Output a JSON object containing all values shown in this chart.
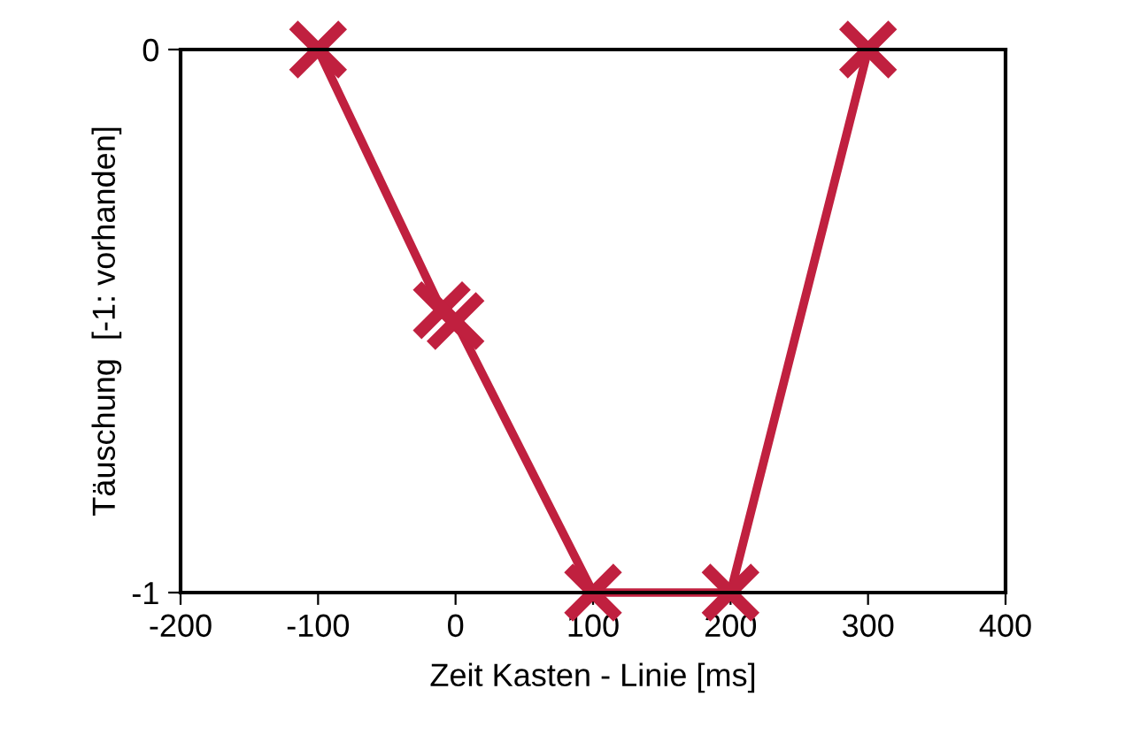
{
  "chart_data": {
    "type": "line",
    "xlabel": "Zeit Kasten - Linie [ms]",
    "ylabel": "Täuschung  [-1: vorhanden]",
    "x": [
      -100,
      -10,
      0,
      100,
      200,
      300
    ],
    "series": [
      {
        "color": "#c0203f",
        "values": [
          0,
          -0.48,
          -0.5,
          -1,
          -1,
          0
        ]
      }
    ],
    "xlim": [
      -200,
      400
    ],
    "xticks": [
      -200,
      -100,
      0,
      100,
      200,
      300,
      400
    ],
    "ylim": [
      -1,
      0
    ],
    "yticks": [
      -1,
      0
    ],
    "marker": "cross",
    "line_style": "solid",
    "grid": false,
    "legend": false
  }
}
